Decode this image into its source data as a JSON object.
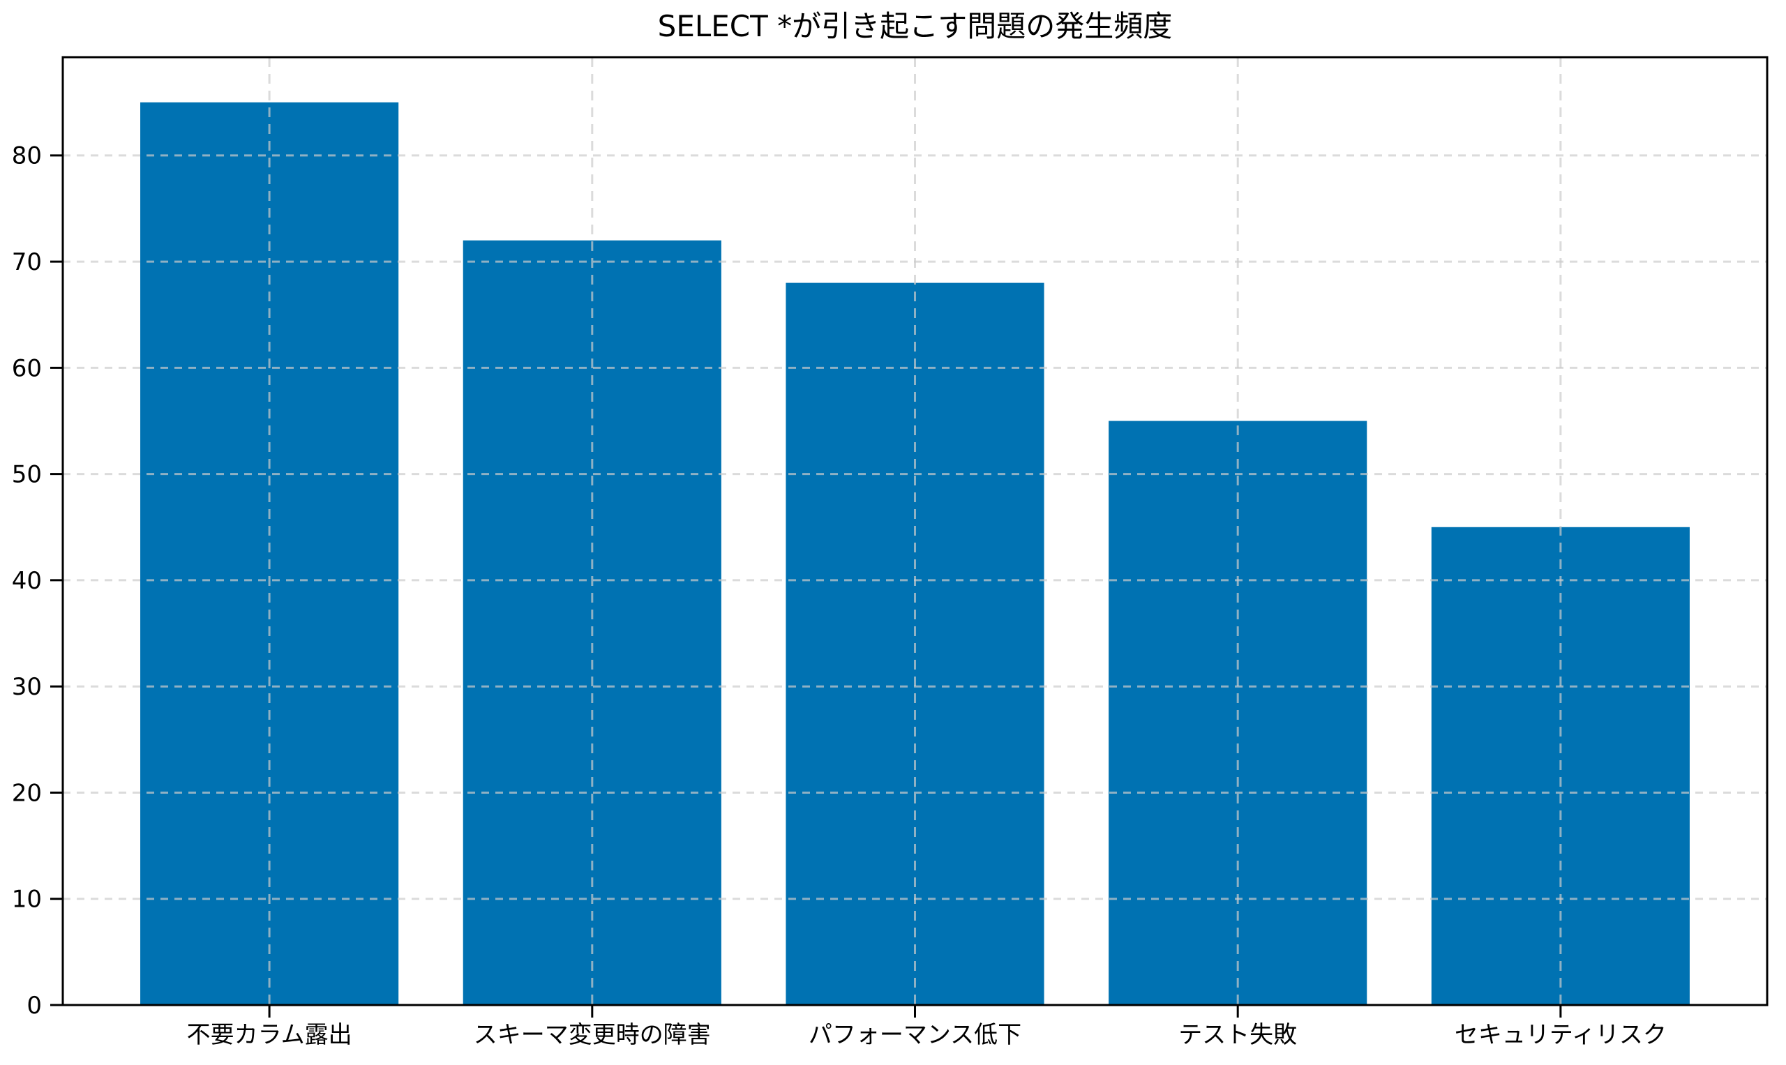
{
  "chart_data": {
    "type": "bar",
    "title": "SELECT *が引き起こす問題の発生頻度",
    "categories": [
      "不要カラム露出",
      "スキーマ変更時の障害",
      "パフォーマンス低下",
      "テスト失敗",
      "セキュリティリスク"
    ],
    "values": [
      85,
      72,
      68,
      55,
      45
    ],
    "xlabel": "",
    "ylabel": "",
    "yticks": [
      0,
      10,
      20,
      30,
      40,
      50,
      60,
      70,
      80
    ],
    "ylim": [
      0,
      89.25
    ],
    "grid": true,
    "grid_style": "dashed",
    "legend": "none",
    "bar_color": "#0072B2",
    "grid_color": "#cccccc",
    "grid_opacity": 0.7,
    "axis_color": "#000000",
    "background_color": "#ffffff",
    "tick_fontsize_px": 34,
    "title_fontsize_px": 42
  }
}
